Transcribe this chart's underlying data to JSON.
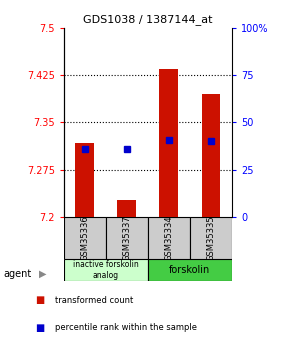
{
  "title": "GDS1038 / 1387144_at",
  "samples": [
    "GSM35336",
    "GSM35337",
    "GSM35334",
    "GSM35335"
  ],
  "bar_values": [
    7.317,
    7.228,
    7.435,
    7.395
  ],
  "bar_bottom": 7.2,
  "percentile_values": [
    7.308,
    7.308,
    7.322,
    7.32
  ],
  "ylim": [
    7.2,
    7.5
  ],
  "yticks": [
    7.2,
    7.275,
    7.35,
    7.425,
    7.5
  ],
  "ytick_labels": [
    "7.2",
    "7.275",
    "7.35",
    "7.425",
    "7.5"
  ],
  "y2_ticks": [
    0,
    25,
    50,
    75,
    100
  ],
  "y2_labels": [
    "0",
    "25",
    "50",
    "75",
    "100%"
  ],
  "bar_color": "#cc1100",
  "percentile_color": "#0000cc",
  "group1_label": "inactive forskolin\nanalog",
  "group2_label": "forskolin",
  "group1_color": "#ccffcc",
  "group2_color": "#44cc44",
  "agent_label": "agent",
  "legend_red": "transformed count",
  "legend_blue": "percentile rank within the sample",
  "sample_box_color": "#cccccc"
}
